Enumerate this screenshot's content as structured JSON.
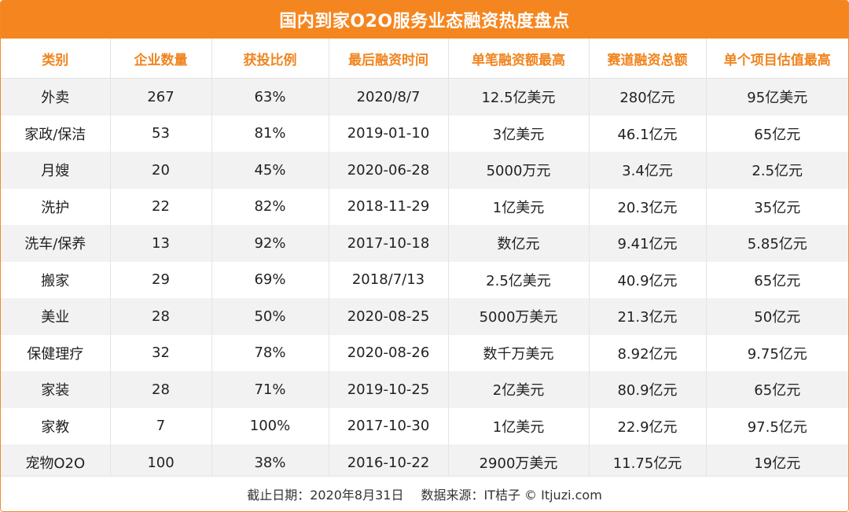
{
  "title": "国内到家O2O服务业态融资热度盘点",
  "colors": {
    "accent": "#f5861f",
    "header_text": "#f0841e",
    "stripe": "#f2f2f2"
  },
  "columns": [
    "类别",
    "企业数量",
    "获投比例",
    "最后融资时间",
    "单笔融资额最高",
    "赛道融资总额",
    "单个项目估值最高"
  ],
  "rows": [
    [
      "外卖",
      "267",
      "63%",
      "2020/8/7",
      "12.5亿美元",
      "280亿元",
      "95亿美元"
    ],
    [
      "家政/保洁",
      "53",
      "81%",
      "2019-01-10",
      "3亿美元",
      "46.1亿元",
      "65亿元"
    ],
    [
      "月嫂",
      "20",
      "45%",
      "2020-06-28",
      "5000万元",
      "3.4亿元",
      "2.5亿元"
    ],
    [
      "洗护",
      "22",
      "82%",
      "2018-11-29",
      "1亿美元",
      "20.3亿元",
      "35亿元"
    ],
    [
      "洗车/保养",
      "13",
      "92%",
      "2017-10-18",
      "数亿元",
      "9.41亿元",
      "5.85亿元"
    ],
    [
      "搬家",
      "29",
      "69%",
      "2018/7/13",
      "2.5亿美元",
      "40.9亿元",
      "65亿元"
    ],
    [
      "美业",
      "28",
      "50%",
      "2020-08-25",
      "5000万美元",
      "21.3亿元",
      "50亿元"
    ],
    [
      "保健理疗",
      "32",
      "78%",
      "2020-08-26",
      "数千万美元",
      "8.92亿元",
      "9.75亿元"
    ],
    [
      "家装",
      "28",
      "71%",
      "2019-10-25",
      "2亿美元",
      "80.9亿元",
      "65亿元"
    ],
    [
      "家教",
      "7",
      "100%",
      "2017-10-30",
      "1亿美元",
      "22.9亿元",
      "97.5亿元"
    ],
    [
      "宠物O2O",
      "100",
      "38%",
      "2016-10-22",
      "2900万美元",
      "11.75亿元",
      "19亿元"
    ]
  ],
  "footer": {
    "date": "截止日期：2020年8月31日",
    "source": "数据来源：IT桔子 © Itjuzi.com"
  }
}
